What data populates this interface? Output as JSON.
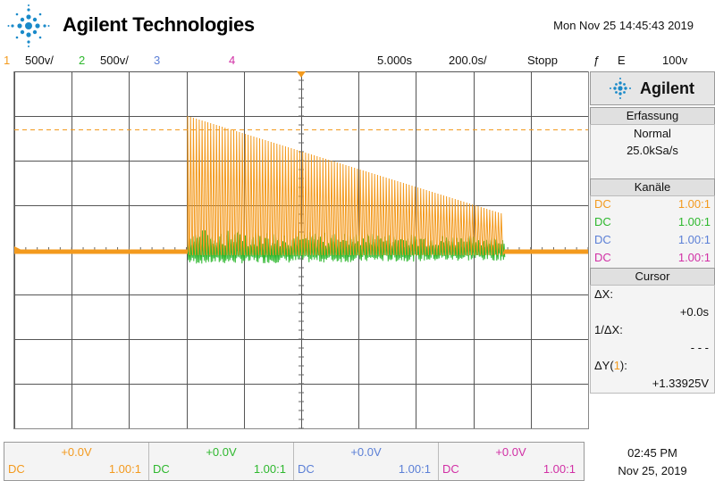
{
  "header": {
    "brand": "Agilent Technologies",
    "datetime": "Mon Nov 25 14:45:43 2019"
  },
  "channel_bar": {
    "ch1_num": "1",
    "ch1_scale": "500v/",
    "ch2_num": "2",
    "ch2_scale": "500v/",
    "ch3_num": "3",
    "ch4_num": "4",
    "time_pos": "5.000s",
    "time_scale": "200.0s/",
    "run_state": "Stopp",
    "trigger_icon": "ƒ",
    "trigger_source": "E",
    "trigger_level": "100v"
  },
  "colors": {
    "ch1": "#f39a1e",
    "ch2": "#2eb82e",
    "ch3": "#5b7fd6",
    "ch4": "#d12fa5"
  },
  "side_panel": {
    "logo_text": "Agilent",
    "acq_header": "Erfassung",
    "acq_mode": "Normal",
    "acq_rate": "25.0kSa/s",
    "channels_header": "Kanäle",
    "channels": [
      {
        "coupling": "DC",
        "probe": "1.00:1"
      },
      {
        "coupling": "DC",
        "probe": "1.00:1"
      },
      {
        "coupling": "DC",
        "probe": "1.00:1"
      },
      {
        "coupling": "DC",
        "probe": "1.00:1"
      }
    ],
    "cursor_header": "Cursor",
    "dx_label": "ΔX:",
    "dx_value": "+0.0s",
    "inv_dx_label": "1/ΔX:",
    "inv_dx_value": "- - -",
    "dy_label_pre": "ΔY(",
    "dy_label_ch": "1",
    "dy_label_post": "):",
    "dy_value": "+1.33925V"
  },
  "bottom_bar": {
    "channels": [
      {
        "offset": "+0.0V",
        "coupling": "DC",
        "probe": "1.00:1"
      },
      {
        "offset": "+0.0V",
        "coupling": "DC",
        "probe": "1.00:1"
      },
      {
        "offset": "+0.0V",
        "coupling": "DC",
        "probe": "1.00:1"
      },
      {
        "offset": "+0.0V",
        "coupling": "DC",
        "probe": "1.00:1"
      }
    ]
  },
  "clock": {
    "time": "02:45 PM",
    "date": "Nov 25, 2019"
  },
  "icons": [
    "agilent-spark-icon",
    "trigger-edge-icon",
    "ground-marker-icon",
    "trigger-marker-icon"
  ]
}
